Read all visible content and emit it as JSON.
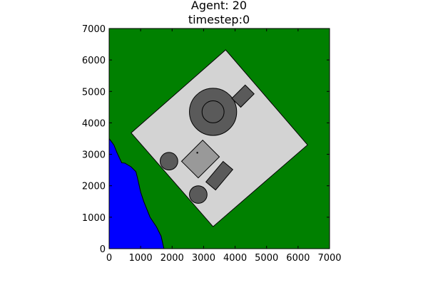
{
  "chart_data": {
    "type": "map",
    "title_lines": [
      "Agent: 20",
      "timestep:0"
    ],
    "xlim": [
      0,
      7000
    ],
    "ylim": [
      0,
      7000
    ],
    "xticks": [
      0,
      1000,
      2000,
      3000,
      4000,
      5000,
      6000,
      7000
    ],
    "yticks": [
      0,
      1000,
      2000,
      3000,
      4000,
      5000,
      6000,
      7000
    ],
    "colors": {
      "background": "#008000",
      "water": "#0000ff",
      "site": "#d3d3d3",
      "building_dark": "#5a5a5a",
      "building_mid": "#999999",
      "outline": "#000000"
    },
    "water_boundary": [
      [
        0,
        3500
      ],
      [
        150,
        3300
      ],
      [
        250,
        3050
      ],
      [
        400,
        2730
      ],
      [
        500,
        2720
      ],
      [
        700,
        2600
      ],
      [
        850,
        2450
      ],
      [
        900,
        2250
      ],
      [
        1000,
        1800
      ],
      [
        1100,
        1500
      ],
      [
        1300,
        1000
      ],
      [
        1500,
        700
      ],
      [
        1650,
        400
      ],
      [
        1740,
        0
      ]
    ],
    "site_polygon": [
      [
        700,
        3680
      ],
      [
        3700,
        6320
      ],
      [
        6300,
        3300
      ],
      [
        3300,
        700
      ]
    ],
    "tank": {
      "cx": 3300,
      "cy": 4350,
      "r_outer": 750,
      "r_inner": 350
    },
    "circles": [
      {
        "cx": 1900,
        "cy": 2780,
        "r": 280
      },
      {
        "cx": 2830,
        "cy": 1720,
        "r": 280
      }
    ],
    "rectangles": [
      {
        "cx": 4250,
        "cy": 4850,
        "w": 400,
        "h": 600,
        "angle": 45,
        "color": "building_dark"
      },
      {
        "cx": 2900,
        "cy": 2850,
        "w": 750,
        "h": 950,
        "angle": 45,
        "color": "building_mid"
      },
      {
        "cx": 3500,
        "cy": 2320,
        "w": 400,
        "h": 850,
        "angle": 40,
        "color": "building_dark"
      }
    ],
    "agent": {
      "x": 2800,
      "y": 3050
    }
  }
}
